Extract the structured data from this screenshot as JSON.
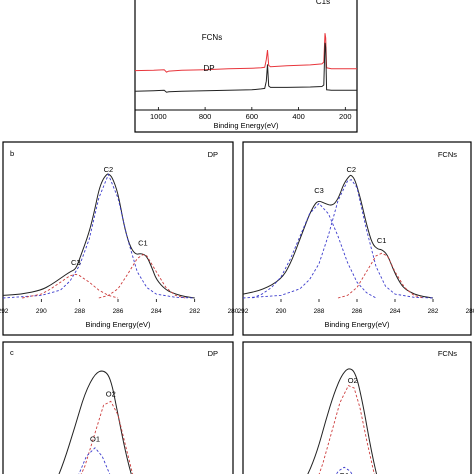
{
  "chart_data": [
    {
      "id": "a",
      "type": "line",
      "panel_label": "",
      "title": "",
      "xlabel": "Binding Energy(eV)",
      "ylabel": "",
      "xlim": [
        1100,
        150
      ],
      "ylim": [
        0,
        1.15
      ],
      "xticks": [
        1000,
        800,
        600,
        400,
        200
      ],
      "grid": false,
      "peak_label": "C1s",
      "series": [
        {
          "name": "FCNs",
          "color": "#e8363c",
          "x": [
            1100,
            1020,
            975,
            965,
            955,
            900,
            800,
            700,
            600,
            560,
            545,
            538,
            533,
            528,
            520,
            450,
            350,
            300,
            292,
            287,
            284,
            280,
            260,
            200,
            150
          ],
          "y": [
            0.82,
            0.83,
            0.84,
            0.79,
            0.81,
            0.83,
            0.84,
            0.86,
            0.87,
            0.88,
            0.89,
            1.05,
            1.25,
            0.93,
            0.9,
            0.92,
            0.94,
            0.96,
            1.0,
            1.6,
            1.5,
            0.88,
            0.86,
            0.86,
            0.86
          ]
        },
        {
          "name": "DP",
          "color": "#222222",
          "x": [
            1100,
            1020,
            975,
            965,
            955,
            900,
            800,
            700,
            600,
            560,
            545,
            538,
            533,
            528,
            520,
            450,
            350,
            300,
            292,
            287,
            284,
            280,
            260,
            200,
            150
          ],
          "y": [
            0.39,
            0.4,
            0.41,
            0.37,
            0.38,
            0.39,
            0.4,
            0.41,
            0.42,
            0.44,
            0.45,
            0.6,
            0.95,
            0.5,
            0.47,
            0.47,
            0.48,
            0.49,
            0.52,
            1.4,
            1.3,
            0.42,
            0.41,
            0.41,
            0.41
          ]
        }
      ]
    },
    {
      "id": "b-dp",
      "type": "line",
      "panel_label": "b",
      "title": "DP",
      "xlabel": "Binding Energy(eV)",
      "ylabel": "",
      "xlim": [
        292,
        280
      ],
      "ylim": [
        0,
        1.05
      ],
      "xticks": [
        292,
        290,
        288,
        286,
        284,
        282,
        280
      ],
      "grid": false,
      "component_labels": [
        {
          "text": "C2",
          "x": 286.5,
          "y": 0.96
        },
        {
          "text": "C1",
          "x": 284.7,
          "y": 0.4
        },
        {
          "text": "C3",
          "x": 288.2,
          "y": 0.25
        }
      ],
      "series": [
        {
          "name": "",
          "color": "#222222",
          "style": "solid",
          "role": "envelope",
          "x": [
            292,
            291,
            290,
            289.5,
            289,
            288.5,
            288.2,
            288,
            287.5,
            287.2,
            287,
            286.8,
            286.6,
            286.5,
            286.3,
            286,
            285.7,
            285.4,
            285.1,
            284.8,
            284.5,
            284.2,
            284,
            283.5,
            283,
            282.5,
            282
          ],
          "y": [
            0.02,
            0.03,
            0.06,
            0.1,
            0.15,
            0.2,
            0.22,
            0.3,
            0.5,
            0.68,
            0.82,
            0.9,
            0.94,
            0.945,
            0.92,
            0.8,
            0.56,
            0.4,
            0.33,
            0.34,
            0.32,
            0.22,
            0.14,
            0.06,
            0.03,
            0.01,
            0.0
          ]
        },
        {
          "name": "",
          "color": "#3b3bcc",
          "style": "dashed",
          "role": "C2",
          "x": [
            292,
            290,
            289,
            288.5,
            288,
            287.5,
            287,
            286.5,
            286,
            285.5,
            285,
            284.5,
            284,
            283,
            282
          ],
          "y": [
            0.0,
            0.02,
            0.06,
            0.13,
            0.25,
            0.45,
            0.76,
            0.94,
            0.76,
            0.45,
            0.2,
            0.08,
            0.03,
            0.005,
            0.0
          ]
        },
        {
          "name": "",
          "color": "#cc3b3b",
          "style": "dashed",
          "role": "C1",
          "x": [
            287,
            286.5,
            286,
            285.5,
            285,
            284.7,
            284.5,
            284,
            283.5,
            283,
            282.5
          ],
          "y": [
            0.0,
            0.02,
            0.07,
            0.18,
            0.3,
            0.33,
            0.32,
            0.2,
            0.08,
            0.02,
            0.0
          ]
        },
        {
          "name": "",
          "color": "#cc3b3b",
          "style": "dashed",
          "role": "C3",
          "x": [
            291,
            290,
            289.5,
            289,
            288.5,
            288.2,
            288,
            287.5,
            287,
            286.5,
            286
          ],
          "y": [
            0.0,
            0.03,
            0.07,
            0.12,
            0.17,
            0.18,
            0.17,
            0.12,
            0.06,
            0.02,
            0.0
          ]
        }
      ]
    },
    {
      "id": "b-fcns",
      "type": "line",
      "panel_label": "",
      "title": "FCNs",
      "xlabel": "Binding Energy(eV)",
      "ylabel": "",
      "xlim": [
        292,
        280
      ],
      "ylim": [
        0,
        1.05
      ],
      "xticks": [
        292,
        290,
        288,
        286,
        284,
        282,
        280
      ],
      "grid": false,
      "component_labels": [
        {
          "text": "C2",
          "x": 286.3,
          "y": 0.96
        },
        {
          "text": "C3",
          "x": 288.0,
          "y": 0.8
        },
        {
          "text": "C1",
          "x": 284.7,
          "y": 0.42
        }
      ],
      "series": [
        {
          "name": "",
          "color": "#222222",
          "style": "solid",
          "role": "envelope",
          "x": [
            292,
            291,
            290,
            289.5,
            289,
            288.5,
            288.2,
            288,
            287.7,
            287.3,
            287,
            286.7,
            286.4,
            286.3,
            286.1,
            285.8,
            285.5,
            285.2,
            284.9,
            284.7,
            284.4,
            284.1,
            283.8,
            283.5,
            283,
            282.5,
            282
          ],
          "y": [
            0.03,
            0.06,
            0.14,
            0.26,
            0.45,
            0.64,
            0.72,
            0.74,
            0.72,
            0.7,
            0.75,
            0.87,
            0.93,
            0.935,
            0.9,
            0.75,
            0.56,
            0.41,
            0.37,
            0.37,
            0.33,
            0.22,
            0.13,
            0.07,
            0.03,
            0.01,
            0.0
          ]
        },
        {
          "name": "",
          "color": "#3b3bcc",
          "style": "dashed",
          "role": "C2",
          "x": [
            292,
            290,
            289,
            288.5,
            288,
            287.5,
            287,
            286.5,
            286.3,
            286,
            285.5,
            285,
            284.5,
            284,
            283,
            282
          ],
          "y": [
            0.0,
            0.02,
            0.07,
            0.14,
            0.26,
            0.48,
            0.74,
            0.89,
            0.9,
            0.84,
            0.52,
            0.24,
            0.09,
            0.03,
            0.005,
            0.0
          ]
        },
        {
          "name": "",
          "color": "#cc3b3b",
          "style": "dashed",
          "role": "C1",
          "x": [
            287,
            286.5,
            286,
            285.5,
            285,
            284.7,
            284.4,
            284,
            283.5,
            283,
            282.5
          ],
          "y": [
            0.0,
            0.02,
            0.08,
            0.2,
            0.32,
            0.34,
            0.32,
            0.2,
            0.08,
            0.02,
            0.0
          ]
        },
        {
          "name": "",
          "color": "#3b3bcc",
          "style": "dashed",
          "role": "C3",
          "x": [
            291.5,
            291,
            290.5,
            290,
            289.5,
            289,
            288.5,
            288,
            287.5,
            287,
            286.5,
            286,
            285.5,
            285
          ],
          "y": [
            0.0,
            0.03,
            0.08,
            0.16,
            0.3,
            0.47,
            0.64,
            0.72,
            0.64,
            0.47,
            0.27,
            0.12,
            0.04,
            0.0
          ]
        }
      ]
    },
    {
      "id": "c-dp",
      "type": "line",
      "panel_label": "c",
      "title": "DP",
      "xlabel": "",
      "ylabel": "",
      "xlim": [
        540,
        524
      ],
      "ylim": [
        0,
        1.05
      ],
      "grid": false,
      "component_labels": [
        {
          "text": "O2",
          "x": 532.5,
          "y": 0.75
        },
        {
          "text": "O1",
          "x": 533.6,
          "y": 0.38
        }
      ],
      "series": [
        {
          "name": "",
          "color": "#222222",
          "style": "solid",
          "role": "envelope",
          "x": [
            536.5,
            535.8,
            535,
            534.3,
            533.6,
            533,
            532.5,
            532,
            531.4,
            530.8
          ],
          "y": [
            0.0,
            0.2,
            0.5,
            0.78,
            0.94,
            0.97,
            0.9,
            0.6,
            0.25,
            0.0
          ]
        },
        {
          "name": "",
          "color": "#cc3b3b",
          "style": "dashed",
          "role": "O2",
          "x": [
            535,
            534.3,
            533.6,
            533,
            532.5,
            532,
            531.5,
            531,
            530.5
          ],
          "y": [
            0.0,
            0.18,
            0.45,
            0.68,
            0.71,
            0.6,
            0.36,
            0.12,
            0.0
          ]
        },
        {
          "name": "",
          "color": "#3b3bcc",
          "style": "dashed",
          "role": "O1",
          "x": [
            535.2,
            534.7,
            534.2,
            533.6,
            533.1,
            532.6,
            532.1
          ],
          "y": [
            0.0,
            0.12,
            0.26,
            0.33,
            0.26,
            0.12,
            0.0
          ]
        }
      ]
    },
    {
      "id": "c-fcns",
      "type": "line",
      "panel_label": "",
      "title": "FCNs",
      "xlabel": "",
      "ylabel": "",
      "xlim": [
        540,
        524
      ],
      "ylim": [
        0,
        1.05
      ],
      "grid": false,
      "component_labels": [
        {
          "text": "O2",
          "x": 532.3,
          "y": 0.86
        },
        {
          "text": "O1",
          "x": 532.9,
          "y": 0.08
        }
      ],
      "series": [
        {
          "name": "",
          "color": "#222222",
          "style": "solid",
          "role": "envelope",
          "x": [
            536,
            535.4,
            534.8,
            534.2,
            533.6,
            533.1,
            532.6,
            532.1,
            531.6,
            531,
            530.4
          ],
          "y": [
            0.0,
            0.12,
            0.3,
            0.55,
            0.78,
            0.92,
            0.99,
            0.95,
            0.7,
            0.3,
            0.0
          ]
        },
        {
          "name": "",
          "color": "#cc3b3b",
          "style": "dashed",
          "role": "O2",
          "x": [
            535,
            534.4,
            533.8,
            533.2,
            532.6,
            532.2,
            531.8,
            531.3,
            530.8,
            530.3
          ],
          "y": [
            0.0,
            0.2,
            0.45,
            0.7,
            0.84,
            0.82,
            0.66,
            0.38,
            0.12,
            0.0
          ]
        },
        {
          "name": "",
          "color": "#3b3bcc",
          "style": "dashed",
          "role": "O1",
          "x": [
            534.2,
            533.7,
            533.3,
            532.9,
            532.5,
            532.1,
            531.7
          ],
          "y": [
            0.0,
            0.07,
            0.14,
            0.17,
            0.14,
            0.07,
            0.0
          ]
        }
      ]
    }
  ]
}
